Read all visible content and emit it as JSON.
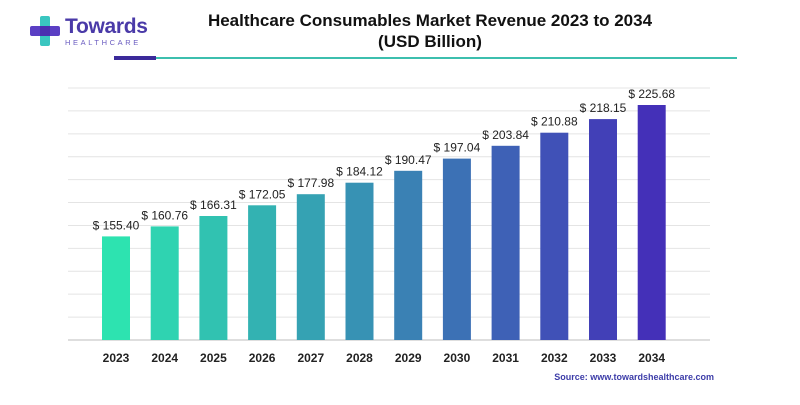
{
  "logo": {
    "name": "Towards",
    "sub": "HEALTHCARE"
  },
  "title_line1": "Healthcare Consumables Market Revenue 2023 to 2034",
  "title_line2": "(USD Billion)",
  "source": "Source: www.towardshealthcare.com",
  "colors": {
    "start": "#2de3b0",
    "end": "#4430b8",
    "grid": "#e4e4e4"
  },
  "chart_data": {
    "type": "bar",
    "title": "Healthcare Consumables Market Revenue 2023 to 2034 (USD Billion)",
    "xlabel": "",
    "ylabel": "",
    "categories": [
      "2023",
      "2024",
      "2025",
      "2026",
      "2027",
      "2028",
      "2029",
      "2030",
      "2031",
      "2032",
      "2033",
      "2034"
    ],
    "values": [
      155.4,
      160.76,
      166.31,
      172.05,
      177.98,
      184.12,
      190.47,
      197.04,
      203.84,
      210.88,
      218.15,
      225.68
    ],
    "value_labels": [
      "$ 155.40",
      "$ 160.76",
      "$ 166.31",
      "$ 172.05",
      "$ 177.98",
      "$ 184.12",
      "$ 190.47",
      "$ 197.04",
      "$ 203.84",
      "$ 210.88",
      "$ 218.15",
      "$ 225.68"
    ],
    "ylim": [
      100,
      230
    ],
    "grid": true,
    "legend": "none"
  }
}
